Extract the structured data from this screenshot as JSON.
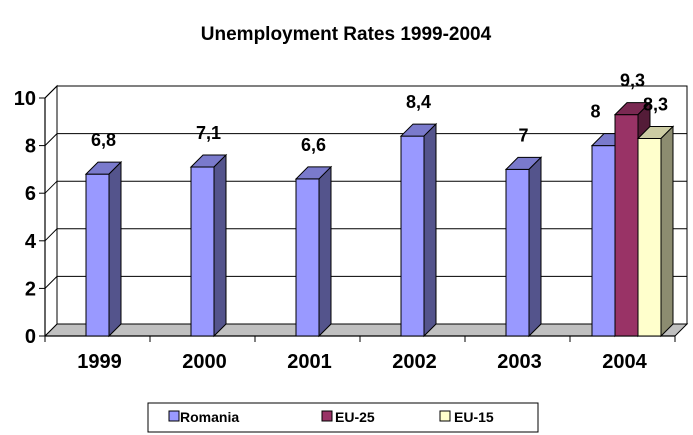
{
  "chart_data": {
    "type": "bar",
    "title": "Unemployment Rates 1999-2004",
    "categories": [
      "1999",
      "2000",
      "2001",
      "2002",
      "2003",
      "2004"
    ],
    "series": [
      {
        "name": "Romania",
        "color": "#9999FF",
        "values": [
          6.8,
          7.1,
          6.6,
          8.4,
          7,
          8
        ],
        "labels": [
          "6,8",
          "7,1",
          "6,6",
          "8,4",
          "7",
          "8"
        ]
      },
      {
        "name": "EU-25",
        "color": "#993366",
        "values": [
          null,
          null,
          null,
          null,
          null,
          9.3
        ],
        "labels": [
          "",
          "",
          "",
          "",
          "",
          "9,3"
        ]
      },
      {
        "name": "EU-15",
        "color": "#FFFFCC",
        "values": [
          null,
          null,
          null,
          null,
          null,
          8.3
        ],
        "labels": [
          "",
          "",
          "",
          "",
          "",
          "8,3"
        ]
      }
    ],
    "y_ticks": [
      "0",
      "2",
      "4",
      "6",
      "8",
      "10"
    ],
    "ylim": [
      0,
      10
    ],
    "grid": true,
    "legend_position": "bottom"
  }
}
